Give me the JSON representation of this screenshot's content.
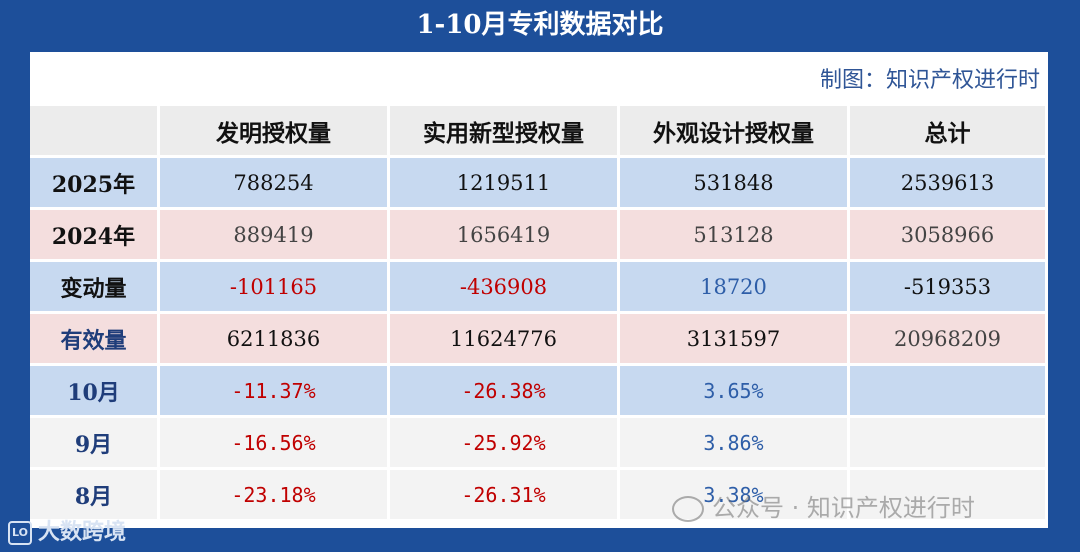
{
  "title": "1-10月专利数据对比",
  "credit": "制图：知识产权进行时",
  "colors": {
    "background": "#1d4f9a",
    "blue_row": "#c7d9f0",
    "pink_row": "#f4dede",
    "negative": "#c00000",
    "positive": "#2e5ea8"
  },
  "chart_data": {
    "type": "table",
    "columns": [
      "",
      "发明授权量",
      "实用新型授权量",
      "外观设计授权量",
      "总计"
    ],
    "rows": [
      {
        "label": "2025年",
        "values": [
          "788254",
          "1219511",
          "531848",
          "2539613"
        ]
      },
      {
        "label": "2024年",
        "values": [
          "889419",
          "1656419",
          "513128",
          "3058966"
        ]
      },
      {
        "label": "变动量",
        "values": [
          "-101165",
          "-436908",
          "18720",
          "-519353"
        ]
      },
      {
        "label": "有效量",
        "values": [
          "6211836",
          "11624776",
          "3131597",
          "20968209"
        ]
      },
      {
        "label": "10月",
        "values": [
          "-11.37%",
          "-26.38%",
          "3.65%",
          ""
        ]
      },
      {
        "label": "9月",
        "values": [
          "-16.56%",
          "-25.92%",
          "3.86%",
          ""
        ]
      },
      {
        "label": "8月",
        "values": [
          "-23.18%",
          "-26.31%",
          "3.38%",
          ""
        ]
      }
    ]
  },
  "watermark": "公众号 · 知识产权进行时",
  "logo": "大数跨境",
  "logo_mark": "LO"
}
